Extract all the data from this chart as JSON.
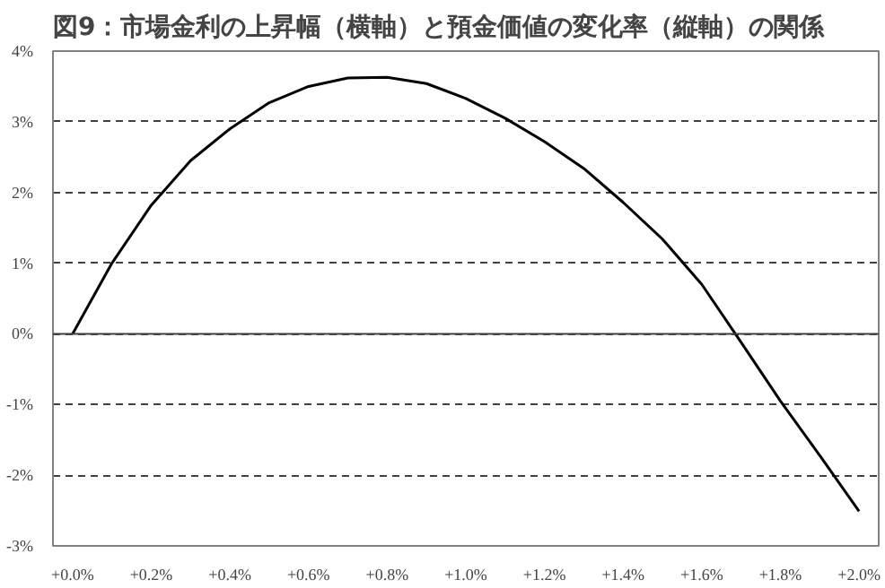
{
  "chart_data": {
    "type": "line",
    "title": "図9：市場金利の上昇幅（横軸）と預金価値の変化率（縦軸）の関係",
    "x": [
      0.0,
      0.1,
      0.2,
      0.3,
      0.4,
      0.5,
      0.6,
      0.7,
      0.8,
      0.9,
      1.0,
      1.1,
      1.2,
      1.3,
      1.4,
      1.5,
      1.6,
      1.7,
      1.8,
      1.9,
      2.0
    ],
    "series": [
      {
        "color": "#000000",
        "values": [
          0.0,
          1.0,
          1.82,
          2.45,
          2.9,
          3.27,
          3.5,
          3.62,
          3.63,
          3.54,
          3.33,
          3.05,
          2.72,
          2.34,
          1.86,
          1.34,
          0.7,
          -0.12,
          -0.95,
          -1.72,
          -2.51
        ]
      }
    ],
    "xlim": [
      -0.05,
      2.05
    ],
    "ylim": [
      -3,
      4
    ],
    "xticks": [
      {
        "value": 0.0,
        "label": "+0.0%"
      },
      {
        "value": 0.2,
        "label": "+0.2%"
      },
      {
        "value": 0.4,
        "label": "+0.4%"
      },
      {
        "value": 0.6,
        "label": "+0.6%"
      },
      {
        "value": 0.8,
        "label": "+0.8%"
      },
      {
        "value": 1.0,
        "label": "+1.0%"
      },
      {
        "value": 1.2,
        "label": "+1.2%"
      },
      {
        "value": 1.4,
        "label": "+1.4%"
      },
      {
        "value": 1.6,
        "label": "+1.6%"
      },
      {
        "value": 1.8,
        "label": "+1.8%"
      },
      {
        "value": 2.0,
        "label": "+2.0%"
      }
    ],
    "yticks": [
      {
        "value": -3,
        "label": "-3%"
      },
      {
        "value": -2,
        "label": "-2%"
      },
      {
        "value": -1,
        "label": "-1%"
      },
      {
        "value": 0,
        "label": "0%"
      },
      {
        "value": 1,
        "label": "1%"
      },
      {
        "value": 2,
        "label": "2%"
      },
      {
        "value": 3,
        "label": "3%"
      },
      {
        "value": 4,
        "label": "4%"
      }
    ],
    "grid": "y",
    "marker": "none",
    "line_style": "solid"
  }
}
